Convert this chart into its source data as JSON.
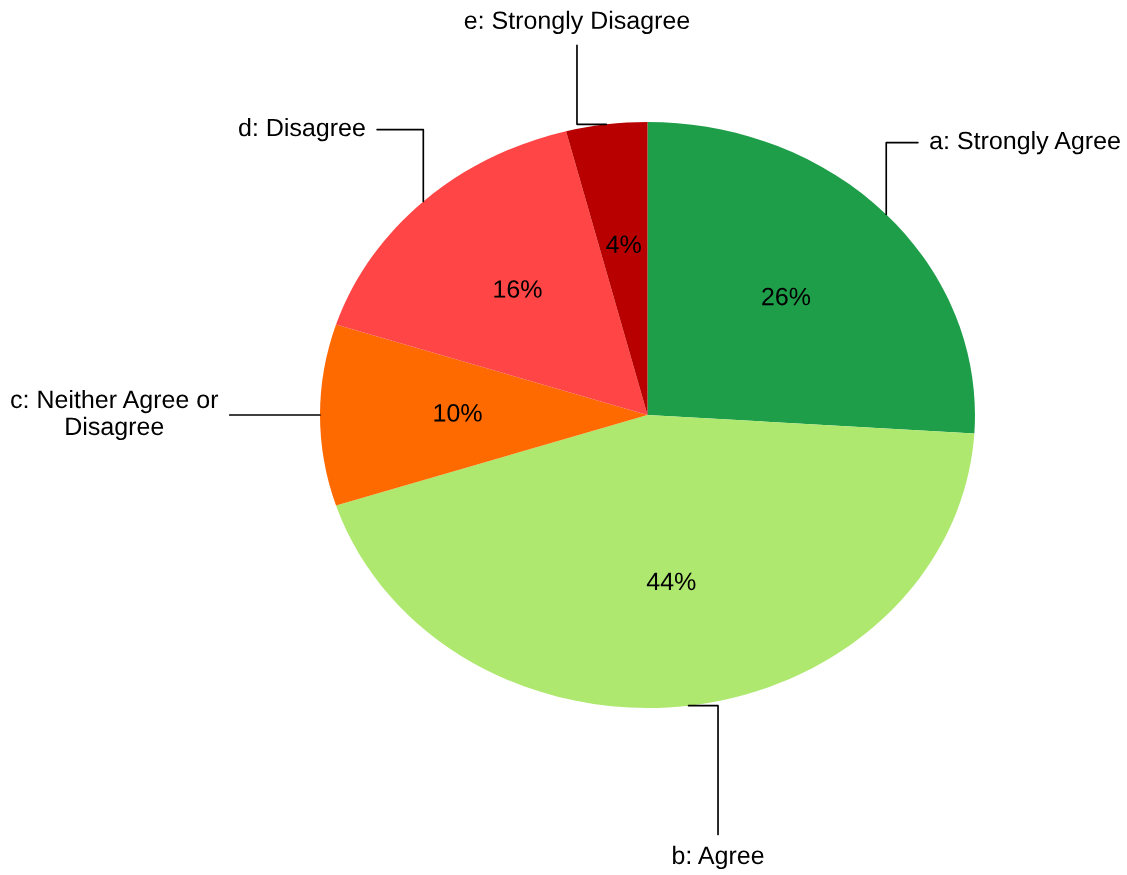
{
  "chart_data": {
    "type": "pie",
    "categories": [
      "a: Strongly Agree",
      "b: Agree",
      "c: Neither Agree or\nDisagree",
      "d: Disagree",
      "e: Strongly Disagree"
    ],
    "values": [
      26,
      44,
      10,
      16,
      4
    ],
    "colors": [
      "#1f9e4a",
      "#aee86f",
      "#ff6a00",
      "#ff4545",
      "#b80000"
    ],
    "value_labels": [
      "26%",
      "44%",
      "10%",
      "16%",
      "4%"
    ]
  }
}
